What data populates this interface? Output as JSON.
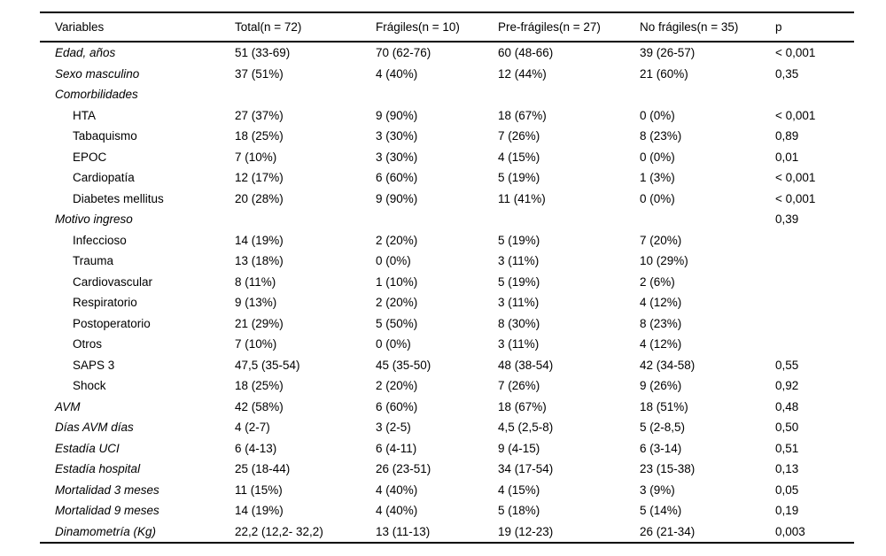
{
  "table": {
    "columns": [
      {
        "label": "Variables"
      },
      {
        "label": "Total(n = 72)"
      },
      {
        "label": "Frágiles(n = 10)"
      },
      {
        "label": "Pre-frágiles(n = 27)"
      },
      {
        "label": "No frágiles(n = 35)"
      },
      {
        "label": "p"
      }
    ],
    "rows": [
      {
        "label": "Edad, años",
        "style": "main",
        "cells": [
          "51 (33-69)",
          "70 (62-76)",
          "60 (48-66)",
          "39 (26-57)",
          "< 0,001"
        ]
      },
      {
        "label": "Sexo masculino",
        "style": "main",
        "cells": [
          "37 (51%)",
          "4 (40%)",
          "12 (44%)",
          "21 (60%)",
          "0,35"
        ]
      },
      {
        "label": "Comorbilidades",
        "style": "main",
        "cells": [
          "",
          "",
          "",
          "",
          ""
        ]
      },
      {
        "label": "HTA",
        "style": "sub",
        "cells": [
          "27 (37%)",
          "9 (90%)",
          "18 (67%)",
          "0 (0%)",
          "< 0,001"
        ]
      },
      {
        "label": "Tabaquismo",
        "style": "sub",
        "cells": [
          "18 (25%)",
          "3 (30%)",
          "7 (26%)",
          "8 (23%)",
          "0,89"
        ]
      },
      {
        "label": "EPOC",
        "style": "sub",
        "cells": [
          "7 (10%)",
          "3 (30%)",
          "4 (15%)",
          "0 (0%)",
          "0,01"
        ]
      },
      {
        "label": "Cardiopatía",
        "style": "sub",
        "cells": [
          "12 (17%)",
          "6 (60%)",
          "5 (19%)",
          "1 (3%)",
          "< 0,001"
        ]
      },
      {
        "label": "Diabetes mellitus",
        "style": "sub",
        "cells": [
          "20 (28%)",
          "9 (90%)",
          "11 (41%)",
          "0 (0%)",
          "< 0,001"
        ]
      },
      {
        "label": "Motivo ingreso",
        "style": "main",
        "cells": [
          "",
          "",
          "",
          "",
          "0,39"
        ]
      },
      {
        "label": "Infeccioso",
        "style": "sub",
        "cells": [
          "14 (19%)",
          "2 (20%)",
          "5 (19%)",
          "7 (20%)",
          ""
        ]
      },
      {
        "label": "Trauma",
        "style": "sub",
        "cells": [
          "13 (18%)",
          "0 (0%)",
          "3 (11%)",
          "10 (29%)",
          ""
        ]
      },
      {
        "label": "Cardiovascular",
        "style": "sub",
        "cells": [
          "8 (11%)",
          "1 (10%)",
          "5 (19%)",
          "2 (6%)",
          ""
        ]
      },
      {
        "label": "Respiratorio",
        "style": "sub",
        "cells": [
          "9 (13%)",
          "2 (20%)",
          "3 (11%)",
          "4 (12%)",
          ""
        ]
      },
      {
        "label": "Postoperatorio",
        "style": "sub",
        "cells": [
          "21 (29%)",
          "5 (50%)",
          "8 (30%)",
          "8 (23%)",
          ""
        ]
      },
      {
        "label": "Otros",
        "style": "sub",
        "cells": [
          "7 (10%)",
          "0 (0%)",
          "3 (11%)",
          "4 (12%)",
          ""
        ]
      },
      {
        "label": "SAPS 3",
        "style": "sub",
        "cells": [
          "47,5 (35-54)",
          "45 (35-50)",
          "48 (38-54)",
          "42 (34-58)",
          "0,55"
        ]
      },
      {
        "label": "Shock",
        "style": "sub",
        "cells": [
          "18 (25%)",
          "2 (20%)",
          "7 (26%)",
          "9 (26%)",
          "0,92"
        ]
      },
      {
        "label": "AVM",
        "style": "main",
        "cells": [
          "42 (58%)",
          "6 (60%)",
          "18 (67%)",
          "18 (51%)",
          "0,48"
        ]
      },
      {
        "label": "Días AVM días",
        "style": "main",
        "cells": [
          "4 (2-7)",
          "3 (2-5)",
          "4,5 (2,5-8)",
          "5 (2-8,5)",
          "0,50"
        ]
      },
      {
        "label": "Estadía UCI",
        "style": "main",
        "cells": [
          "6 (4-13)",
          "6 (4-11)",
          "9 (4-15)",
          "6 (3-14)",
          "0,51"
        ]
      },
      {
        "label": "Estadía hospital",
        "style": "main",
        "cells": [
          "25 (18-44)",
          "26 (23-51)",
          "34 (17-54)",
          "23 (15-38)",
          "0,13"
        ]
      },
      {
        "label": "Mortalidad 3 meses",
        "style": "main",
        "cells": [
          "11 (15%)",
          "4 (40%)",
          "4 (15%)",
          "3 (9%)",
          "0,05"
        ]
      },
      {
        "label": "Mortalidad 9 meses",
        "style": "main",
        "cells": [
          "14 (19%)",
          "4 (40%)",
          "5 (18%)",
          "5 (14%)",
          "0,19"
        ]
      },
      {
        "label": "Dinamometría (Kg)",
        "style": "main",
        "cells": [
          "22,2 (12,2- 32,2)",
          "13 (11-13)",
          "19 (12-23)",
          "26 (21-34)",
          "0,003"
        ]
      }
    ]
  },
  "colors": {
    "text": "#000000",
    "rule": "#000000",
    "background": "#ffffff"
  }
}
